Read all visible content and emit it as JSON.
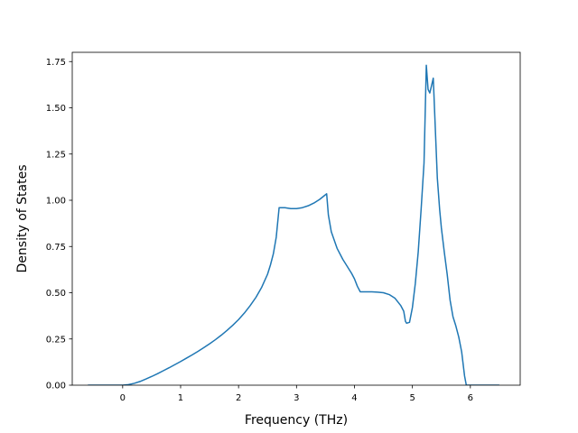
{
  "chart_data": {
    "type": "line",
    "title": "",
    "xlabel": "Frequency (THz)",
    "ylabel": "Density of States",
    "xlim": [
      -0.87,
      6.86
    ],
    "ylim": [
      0,
      1.8
    ],
    "xticks": [
      0,
      1,
      2,
      3,
      4,
      5,
      6
    ],
    "xtick_labels": [
      "0",
      "1",
      "2",
      "3",
      "4",
      "5",
      "6"
    ],
    "yticks": [
      0,
      0.25,
      0.5,
      0.75,
      1.0,
      1.25,
      1.5,
      1.75
    ],
    "ytick_labels": [
      "0.00",
      "0.25",
      "0.50",
      "0.75",
      "1.00",
      "1.25",
      "1.50",
      "1.75"
    ],
    "grid": false,
    "legend": "none",
    "series": [
      {
        "color": "#1f77b4",
        "x": [
          -0.6,
          -0.3,
          0.0,
          0.1,
          0.2,
          0.3,
          0.4,
          0.5,
          0.6,
          0.7,
          0.8,
          0.9,
          1.0,
          1.1,
          1.2,
          1.3,
          1.4,
          1.5,
          1.6,
          1.7,
          1.8,
          1.9,
          2.0,
          2.1,
          2.2,
          2.3,
          2.4,
          2.5,
          2.55,
          2.6,
          2.65,
          2.7,
          2.8,
          2.9,
          3.0,
          3.1,
          3.2,
          3.3,
          3.4,
          3.48,
          3.52,
          3.55,
          3.6,
          3.7,
          3.8,
          3.9,
          3.95,
          4.0,
          4.05,
          4.1,
          4.2,
          4.3,
          4.4,
          4.5,
          4.6,
          4.7,
          4.8,
          4.85,
          4.88,
          4.9,
          4.95,
          5.0,
          5.05,
          5.1,
          5.15,
          5.2,
          5.24,
          5.27,
          5.3,
          5.33,
          5.36,
          5.4,
          5.43,
          5.47,
          5.5,
          5.55,
          5.6,
          5.65,
          5.7,
          5.75,
          5.8,
          5.85,
          5.9,
          5.93,
          6.0,
          6.2,
          6.5
        ],
        "y": [
          0.0,
          0.0,
          0.0,
          0.003,
          0.01,
          0.02,
          0.033,
          0.047,
          0.062,
          0.078,
          0.094,
          0.111,
          0.128,
          0.146,
          0.164,
          0.183,
          0.203,
          0.224,
          0.246,
          0.27,
          0.296,
          0.324,
          0.355,
          0.39,
          0.43,
          0.475,
          0.53,
          0.6,
          0.65,
          0.71,
          0.8,
          0.96,
          0.96,
          0.955,
          0.955,
          0.96,
          0.97,
          0.985,
          1.005,
          1.025,
          1.035,
          0.92,
          0.83,
          0.74,
          0.68,
          0.63,
          0.605,
          0.575,
          0.535,
          0.505,
          0.505,
          0.505,
          0.503,
          0.5,
          0.49,
          0.47,
          0.43,
          0.4,
          0.345,
          0.335,
          0.34,
          0.42,
          0.55,
          0.72,
          0.95,
          1.2,
          1.73,
          1.6,
          1.58,
          1.62,
          1.66,
          1.35,
          1.12,
          0.95,
          0.85,
          0.72,
          0.6,
          0.46,
          0.37,
          0.32,
          0.26,
          0.18,
          0.05,
          0.0,
          0.0,
          0.0,
          0.0
        ]
      }
    ]
  }
}
